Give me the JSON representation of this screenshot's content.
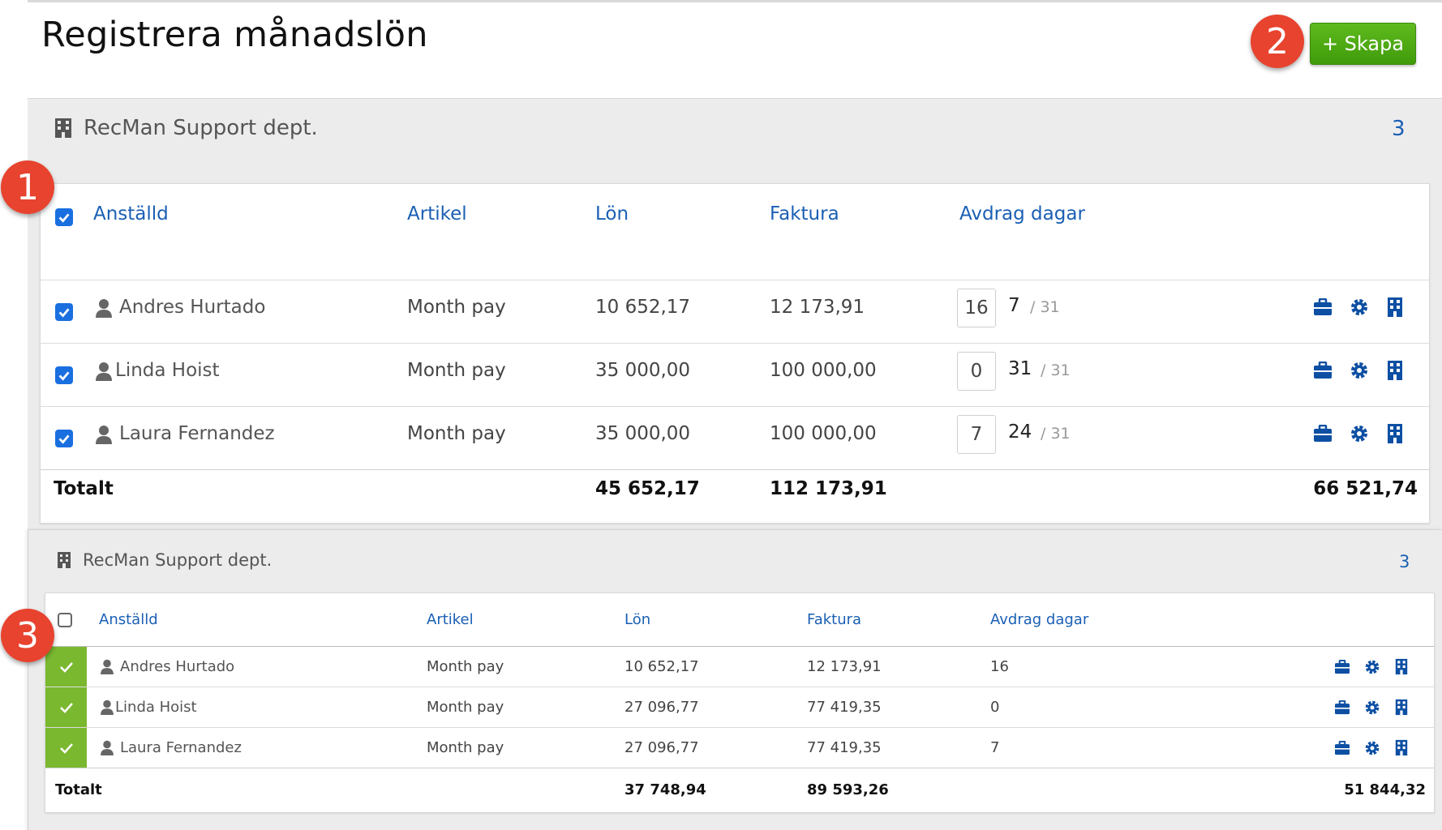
{
  "page": {
    "title": "Registrera månadslön",
    "create_label": "+ Skapa"
  },
  "markers": [
    "1",
    "2",
    "3"
  ],
  "columns": {
    "employee": "Anställd",
    "article": "Artikel",
    "salary": "Lön",
    "invoice": "Faktura",
    "deduction_days": "Avdrag dagar"
  },
  "section1": {
    "dept": "RecMan Support dept.",
    "count": "3",
    "rows": [
      {
        "name": "Andres Hurtado",
        "article": "Month pay",
        "salary": "10 652,17",
        "invoice": "12 173,91",
        "deduct": "16",
        "days": "7",
        "days_total": "/ 31"
      },
      {
        "name": "Linda Hoist",
        "article": "Month pay",
        "salary": "35 000,00",
        "invoice": "100 000,00",
        "deduct": "0",
        "days": "31",
        "days_total": "/ 31"
      },
      {
        "name": "Laura Fernandez",
        "article": "Month pay",
        "salary": "35 000,00",
        "invoice": "100 000,00",
        "deduct": "7",
        "days": "24",
        "days_total": "/ 31"
      }
    ],
    "total_label": "Totalt",
    "total_salary": "45 652,17",
    "total_invoice": "112 173,91",
    "total_extra": "66 521,74"
  },
  "section2": {
    "dept": "RecMan Support dept.",
    "count": "3",
    "rows": [
      {
        "name": "Andres Hurtado",
        "article": "Month pay",
        "salary": "10 652,17",
        "invoice": "12 173,91",
        "deduct": "16"
      },
      {
        "name": "Linda Hoist",
        "article": "Month pay",
        "salary": "27 096,77",
        "invoice": "77 419,35",
        "deduct": "0"
      },
      {
        "name": "Laura Fernandez",
        "article": "Month pay",
        "salary": "27 096,77",
        "invoice": "77 419,35",
        "deduct": "7"
      }
    ],
    "total_label": "Totalt",
    "total_salary": "37 748,94",
    "total_invoice": "89 593,26",
    "total_extra": "51 844,32"
  },
  "colors": {
    "link_blue": "#1a5fb4",
    "checkbox_blue": "#1a6fe0",
    "icon_blue": "#0d4fa3",
    "success_green": "#7ab830",
    "button_green": "#4fa614",
    "marker_red": "#e8432f"
  },
  "icons": [
    "building-icon",
    "user-icon",
    "briefcase-icon",
    "gear-icon",
    "building-icon",
    "check-icon"
  ]
}
